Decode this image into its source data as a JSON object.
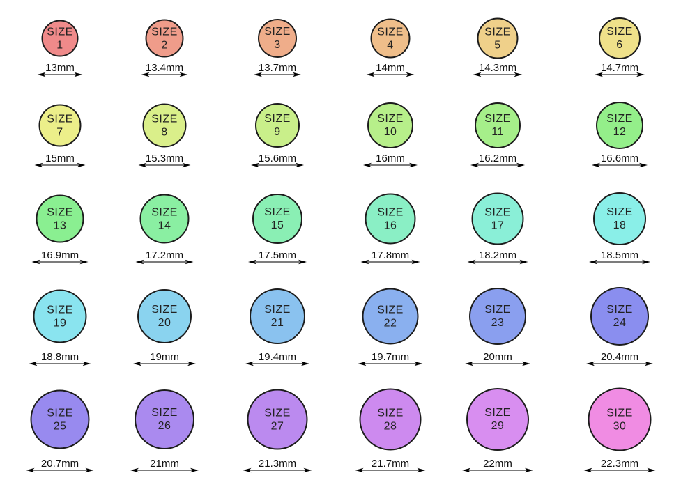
{
  "size_word": "SIZE",
  "colors": {
    "background": "#ffffff",
    "circle_outline": "#1c1c1c",
    "circle_text": "#222222",
    "measure_text": "#111111",
    "arrow": "#2e2e2e"
  },
  "sizes": [
    {
      "size": "1",
      "diameter_mm": 13.0,
      "diameter_label": "13mm",
      "color": "#EF8A8A"
    },
    {
      "size": "2",
      "diameter_mm": 13.4,
      "diameter_label": "13.4mm",
      "color": "#EF9C8A"
    },
    {
      "size": "3",
      "diameter_mm": 13.7,
      "diameter_label": "13.7mm",
      "color": "#EFAD8A"
    },
    {
      "size": "4",
      "diameter_mm": 14.0,
      "diameter_label": "14mm",
      "color": "#EFBE8A"
    },
    {
      "size": "5",
      "diameter_mm": 14.3,
      "diameter_label": "14.3mm",
      "color": "#EFD08A"
    },
    {
      "size": "6",
      "diameter_mm": 14.7,
      "diameter_label": "14.7mm",
      "color": "#EFE18A"
    },
    {
      "size": "7",
      "diameter_mm": 15.0,
      "diameter_label": "15mm",
      "color": "#ECEF8A"
    },
    {
      "size": "8",
      "diameter_mm": 15.3,
      "diameter_label": "15.3mm",
      "color": "#DAEF8A"
    },
    {
      "size": "9",
      "diameter_mm": 15.6,
      "diameter_label": "15.6mm",
      "color": "#C9EF8A"
    },
    {
      "size": "10",
      "diameter_mm": 16.0,
      "diameter_label": "16mm",
      "color": "#B7EF8A"
    },
    {
      "size": "11",
      "diameter_mm": 16.2,
      "diameter_label": "16.2mm",
      "color": "#A6EF8A"
    },
    {
      "size": "12",
      "diameter_mm": 16.6,
      "diameter_label": "16.6mm",
      "color": "#94EF8A"
    },
    {
      "size": "13",
      "diameter_mm": 16.9,
      "diameter_label": "16.9mm",
      "color": "#8AEF91"
    },
    {
      "size": "14",
      "diameter_mm": 17.2,
      "diameter_label": "17.2mm",
      "color": "#8AEFA2"
    },
    {
      "size": "15",
      "diameter_mm": 17.5,
      "diameter_label": "17.5mm",
      "color": "#8AEFB4"
    },
    {
      "size": "16",
      "diameter_mm": 17.8,
      "diameter_label": "17.8mm",
      "color": "#8AEFC5"
    },
    {
      "size": "17",
      "diameter_mm": 18.2,
      "diameter_label": "18.2mm",
      "color": "#8AEFD7"
    },
    {
      "size": "18",
      "diameter_mm": 18.5,
      "diameter_label": "18.5mm",
      "color": "#8AEFE8"
    },
    {
      "size": "19",
      "diameter_mm": 18.8,
      "diameter_label": "18.8mm",
      "color": "#8AE4EF"
    },
    {
      "size": "20",
      "diameter_mm": 19.0,
      "diameter_label": "19mm",
      "color": "#8AD3EF"
    },
    {
      "size": "21",
      "diameter_mm": 19.4,
      "diameter_label": "19.4mm",
      "color": "#8AC2EF"
    },
    {
      "size": "22",
      "diameter_mm": 19.7,
      "diameter_label": "19.7mm",
      "color": "#8AB0EF"
    },
    {
      "size": "23",
      "diameter_mm": 20.0,
      "diameter_label": "20mm",
      "color": "#8A9FEF"
    },
    {
      "size": "24",
      "diameter_mm": 20.4,
      "diameter_label": "20.4mm",
      "color": "#8A8EEF"
    },
    {
      "size": "25",
      "diameter_mm": 20.7,
      "diameter_label": "20.7mm",
      "color": "#988AEF"
    },
    {
      "size": "26",
      "diameter_mm": 21.0,
      "diameter_label": "21mm",
      "color": "#AA8AEF"
    },
    {
      "size": "27",
      "diameter_mm": 21.3,
      "diameter_label": "21.3mm",
      "color": "#BB8AEF"
    },
    {
      "size": "28",
      "diameter_mm": 21.7,
      "diameter_label": "21.7mm",
      "color": "#CD8AEF"
    },
    {
      "size": "29",
      "diameter_mm": 22.0,
      "diameter_label": "22mm",
      "color": "#D88EF0"
    },
    {
      "size": "30",
      "diameter_mm": 22.3,
      "diameter_label": "22.3mm",
      "color": "#F08CE3"
    }
  ]
}
